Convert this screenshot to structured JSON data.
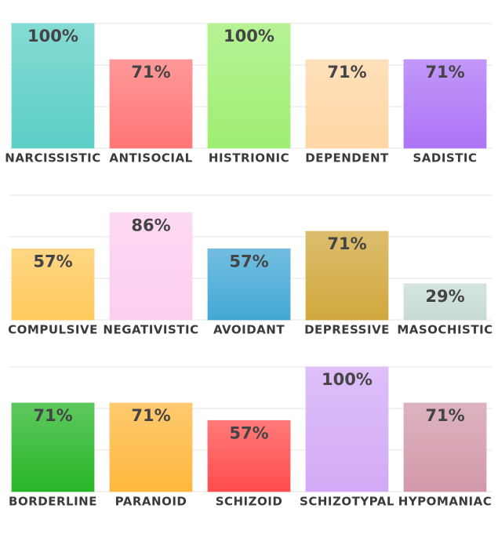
{
  "chart_data": [
    {
      "type": "bar",
      "categories": [
        "NARCISSISTIC",
        "ANTISOCIAL",
        "HISTRIONIC",
        "DEPENDENT",
        "SADISTIC"
      ],
      "values": [
        100,
        71,
        100,
        71,
        71
      ],
      "value_labels": [
        "100%",
        "71%",
        "100%",
        "71%",
        "71%"
      ],
      "colors": [
        "#5ccfc6",
        "#ff7676",
        "#9fee72",
        "#ffd6a4",
        "#ad74f6"
      ],
      "ylim": [
        0,
        100
      ],
      "yticks": [
        0,
        33.3,
        66.7,
        100
      ],
      "grid": true
    },
    {
      "type": "bar",
      "categories": [
        "COMPULSIVE",
        "NEGATIVISTIC",
        "AVOIDANT",
        "DEPRESSIVE",
        "MASOCHISTIC"
      ],
      "values": [
        57,
        86,
        57,
        71,
        29
      ],
      "value_labels": [
        "57%",
        "86%",
        "57%",
        "71%",
        "29%"
      ],
      "colors": [
        "#ffc95c",
        "#fdcdef",
        "#43a8d6",
        "#d1a83d",
        "#c6dcd3"
      ],
      "ylim": [
        0,
        100
      ],
      "yticks": [
        0,
        33.3,
        66.7,
        100
      ],
      "grid": true
    },
    {
      "type": "bar",
      "categories": [
        "BORDERLINE",
        "PARANOID",
        "SCHIZOID",
        "SCHIZOTYPAL",
        "HYPOMANIAC"
      ],
      "values": [
        71,
        71,
        57,
        100,
        71
      ],
      "value_labels": [
        "71%",
        "71%",
        "57%",
        "100%",
        "71%"
      ],
      "colors": [
        "#28b628",
        "#ffb83e",
        "#ff4d4d",
        "#d3aaf6",
        "#d299a9"
      ],
      "ylim": [
        0,
        100
      ],
      "yticks": [
        0,
        33.3,
        66.7,
        100
      ],
      "grid": true
    }
  ]
}
